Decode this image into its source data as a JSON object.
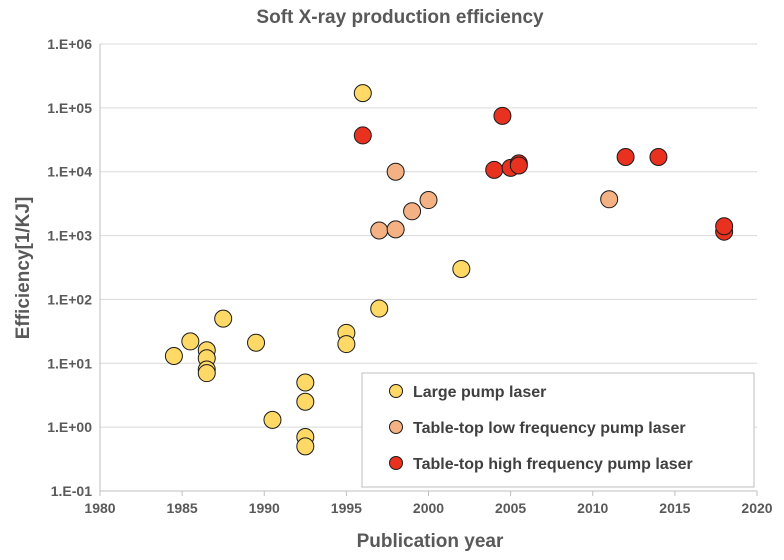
{
  "chart_data": {
    "type": "scatter",
    "title": "Soft X-ray production efficiency",
    "xlabel": "Publication year",
    "ylabel": "Efficiency[1/KJ]",
    "xlim": [
      1980,
      2020
    ],
    "ylim": [
      0.1,
      1000000
    ],
    "yscale": "log",
    "grid": "horizontal",
    "legend_position": "bottom-right",
    "x_ticks": [
      "1980",
      "1985",
      "1990",
      "1995",
      "2000",
      "2005",
      "2010",
      "2015",
      "2020"
    ],
    "y_ticks": [
      "1.E-01",
      "1.E+00",
      "1.E+01",
      "1.E+02",
      "1.E+03",
      "1.E+04",
      "1.E+05",
      "1.E+06"
    ],
    "series": [
      {
        "name": "Large pump laser",
        "color": "#ffd966",
        "points": [
          {
            "x": 1984.5,
            "y": 13
          },
          {
            "x": 1985.5,
            "y": 22
          },
          {
            "x": 1986.5,
            "y": 16
          },
          {
            "x": 1986.5,
            "y": 12
          },
          {
            "x": 1986.5,
            "y": 8
          },
          {
            "x": 1986.5,
            "y": 7
          },
          {
            "x": 1987.5,
            "y": 50
          },
          {
            "x": 1989.5,
            "y": 21
          },
          {
            "x": 1990.5,
            "y": 1.3
          },
          {
            "x": 1992.5,
            "y": 5
          },
          {
            "x": 1992.5,
            "y": 2.5
          },
          {
            "x": 1992.5,
            "y": 0.7
          },
          {
            "x": 1992.5,
            "y": 0.5
          },
          {
            "x": 1995,
            "y": 30
          },
          {
            "x": 1995,
            "y": 20
          },
          {
            "x": 1996,
            "y": 170000
          },
          {
            "x": 1997,
            "y": 72
          },
          {
            "x": 2002,
            "y": 300
          }
        ]
      },
      {
        "name": "Table-top low frequency pump laser",
        "color": "#f4b183",
        "points": [
          {
            "x": 1997,
            "y": 1200
          },
          {
            "x": 1998,
            "y": 1250
          },
          {
            "x": 1998,
            "y": 10000
          },
          {
            "x": 1999,
            "y": 2400
          },
          {
            "x": 2000,
            "y": 3600
          },
          {
            "x": 2011,
            "y": 3700
          }
        ]
      },
      {
        "name": "Table-top high frequency pump laser",
        "color": "#e8311f",
        "points": [
          {
            "x": 1996,
            "y": 37000
          },
          {
            "x": 2004,
            "y": 10700
          },
          {
            "x": 2004.5,
            "y": 75000
          },
          {
            "x": 2005,
            "y": 11500
          },
          {
            "x": 2005.5,
            "y": 13500
          },
          {
            "x": 2005.5,
            "y": 12500
          },
          {
            "x": 2012,
            "y": 17000
          },
          {
            "x": 2014,
            "y": 17000
          },
          {
            "x": 2018,
            "y": 1150
          },
          {
            "x": 2018,
            "y": 1400
          }
        ]
      }
    ]
  }
}
